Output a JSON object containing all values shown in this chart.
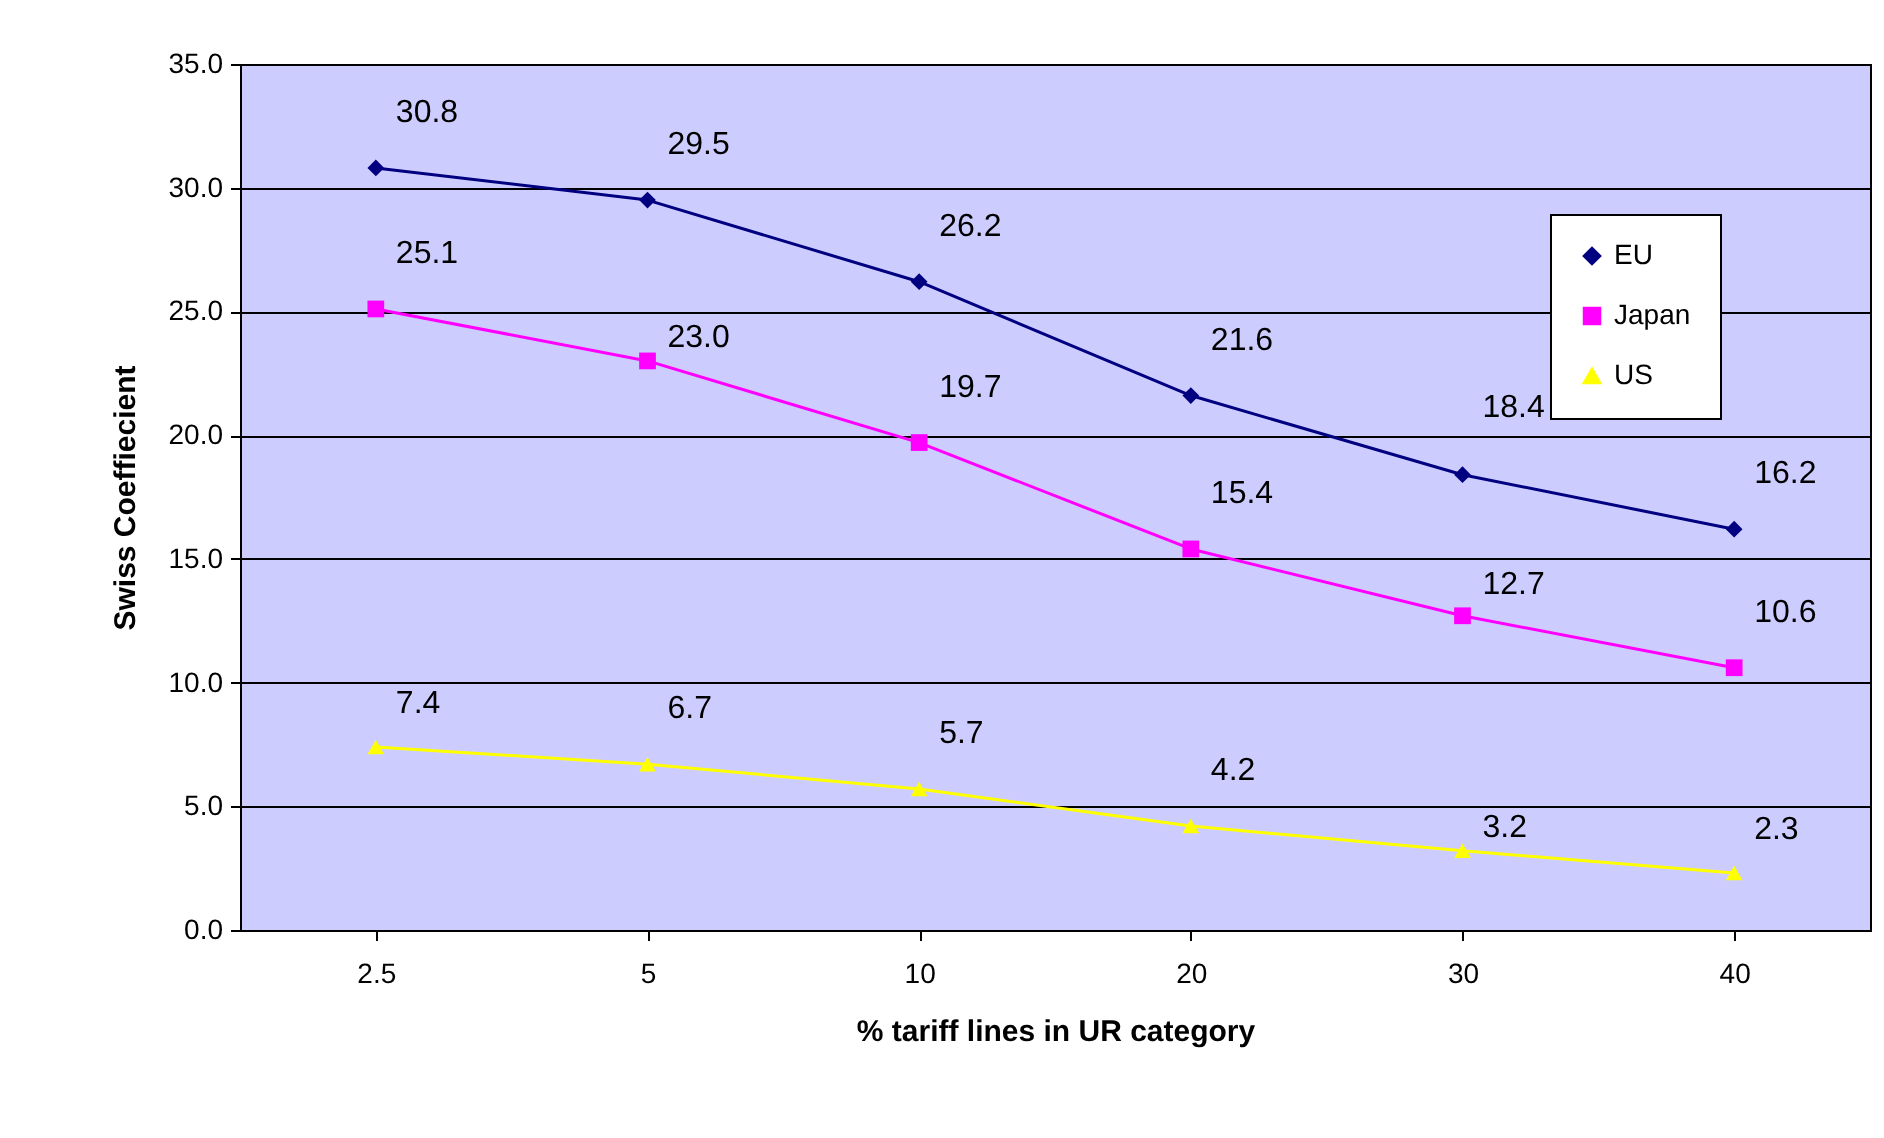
{
  "chart_data": {
    "type": "line",
    "xlabel": "% tariff lines in UR category",
    "ylabel": "Swiss Coeffiecient",
    "categories": [
      "2.5",
      "5",
      "10",
      "20",
      "30",
      "40"
    ],
    "series": [
      {
        "name": "EU",
        "color": "#000080",
        "marker": "diamond",
        "values": [
          30.8,
          29.5,
          26.2,
          21.6,
          18.4,
          16.2
        ],
        "value_labels": [
          "30.8",
          "29.5",
          "26.2",
          "21.6",
          "18.4",
          "16.2"
        ]
      },
      {
        "name": "Japan",
        "color": "#ff00ff",
        "marker": "square",
        "values": [
          25.1,
          23.0,
          19.7,
          15.4,
          12.7,
          10.6
        ],
        "value_labels": [
          "25.1",
          "23.0",
          "19.7",
          "15.4",
          "12.7",
          "10.6"
        ]
      },
      {
        "name": "US",
        "color": "#ffff00",
        "marker": "triangle",
        "values": [
          7.4,
          6.7,
          5.7,
          4.2,
          3.2,
          2.3
        ],
        "value_labels": [
          "7.4",
          "6.7",
          "5.7",
          "4.2",
          "3.2",
          "2.3"
        ]
      }
    ],
    "ylim": [
      0,
      35
    ],
    "yticks": [
      {
        "value": 0,
        "label": "0.0"
      },
      {
        "value": 5,
        "label": "5.0"
      },
      {
        "value": 10,
        "label": "10.0"
      },
      {
        "value": 15,
        "label": "15.0"
      },
      {
        "value": 20,
        "label": "20.0"
      },
      {
        "value": 25,
        "label": "25.0"
      },
      {
        "value": 30,
        "label": "30.0"
      },
      {
        "value": 35,
        "label": "35.0"
      }
    ],
    "grid": "y",
    "legend": "top right",
    "line_style": "solid"
  }
}
